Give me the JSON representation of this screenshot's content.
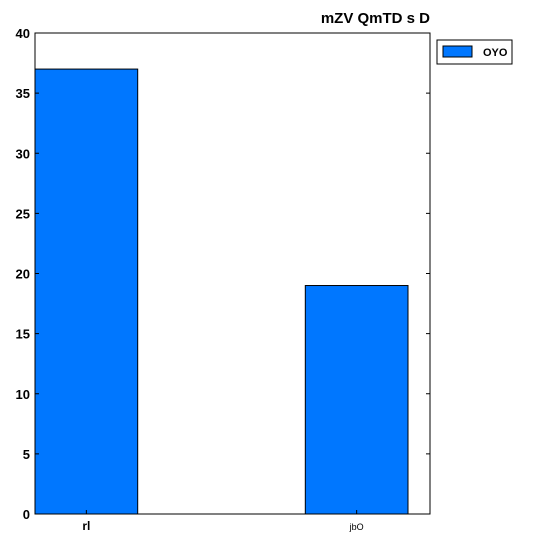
{
  "chart_data": {
    "type": "bar",
    "title": "mZV QmTD s D",
    "categories": [
      "rl",
      "jbO"
    ],
    "series": [
      {
        "name": "OYO",
        "values": [
          37,
          19
        ],
        "color": "#0077ff"
      }
    ],
    "ylim": [
      0,
      40
    ],
    "yticks": [
      0,
      5,
      10,
      15,
      20,
      25,
      30,
      35,
      40
    ],
    "grid": false,
    "legend_position": "outside-right-top"
  }
}
